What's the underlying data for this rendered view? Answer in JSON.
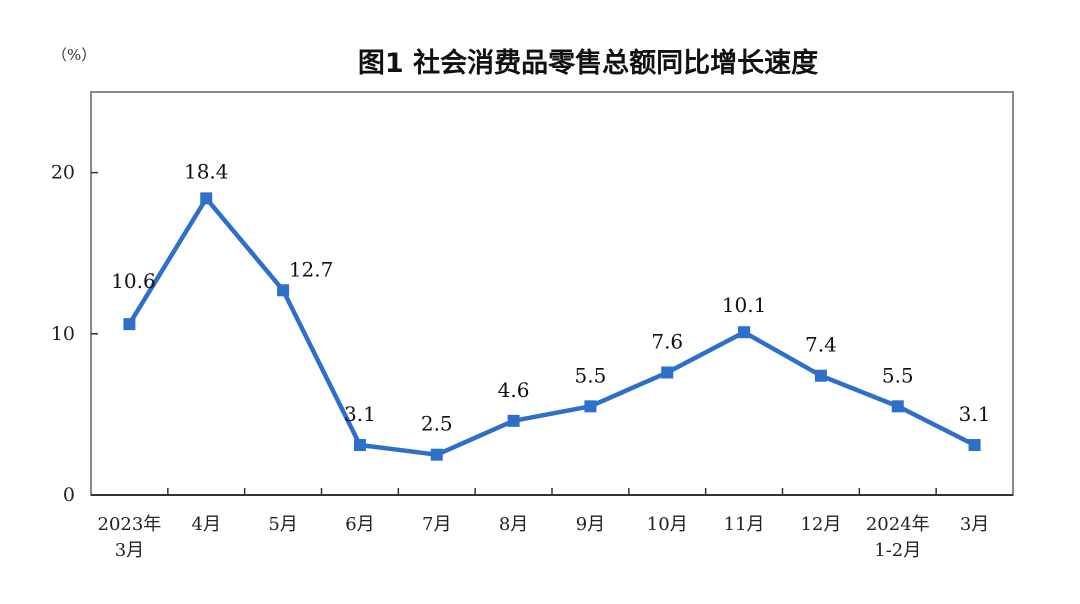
{
  "chart_data": {
    "type": "line",
    "title": "图1  社会消费品零售总额同比增长速度",
    "unit_label": "（%）",
    "xlabel": "",
    "ylabel": "",
    "ylim": [
      0,
      25
    ],
    "yticks": [
      0,
      10,
      20
    ],
    "grid": false,
    "legend": "none",
    "categories": [
      [
        "2023年",
        "3月"
      ],
      [
        "4月"
      ],
      [
        "5月"
      ],
      [
        "6月"
      ],
      [
        "7月"
      ],
      [
        "8月"
      ],
      [
        "9月"
      ],
      [
        "10月"
      ],
      [
        "11月"
      ],
      [
        "12月"
      ],
      [
        "2024年",
        "1-2月"
      ],
      [
        "3月"
      ]
    ],
    "series": [
      {
        "values": [
          10.6,
          18.4,
          12.7,
          3.1,
          2.5,
          4.6,
          5.5,
          7.6,
          10.1,
          7.4,
          5.5,
          3.1
        ],
        "labels": [
          "10.6",
          "18.4",
          "12.7",
          "3.1",
          "2.5",
          "4.6",
          "5.5",
          "7.6",
          "10.1",
          "7.4",
          "5.5",
          "3.1"
        ],
        "color": "#2e6fca"
      }
    ]
  }
}
